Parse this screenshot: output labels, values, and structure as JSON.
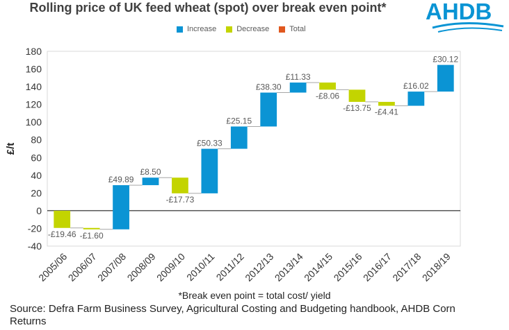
{
  "chart_data": {
    "type": "waterfall",
    "title": "Rolling price of UK feed wheat (spot) over break even point*",
    "ylabel": "£/t",
    "xlabel": "",
    "ylim": [
      -40,
      180
    ],
    "yticks": [
      -40,
      -20,
      0,
      20,
      40,
      60,
      80,
      100,
      120,
      140,
      160,
      180
    ],
    "categories": [
      "2005/06",
      "2006/07",
      "2007/08",
      "2008/09",
      "2009/10",
      "2010/11",
      "2011/12",
      "2012/13",
      "2013/14",
      "2014/15",
      "2015/16",
      "2016/17",
      "2017/18",
      "2018/19"
    ],
    "values": [
      -19.46,
      -1.6,
      49.89,
      8.5,
      -17.73,
      50.33,
      25.15,
      38.3,
      11.33,
      -8.06,
      -13.75,
      -4.41,
      16.02,
      30.12
    ],
    "labels": [
      "-£19.46",
      "-£1.60",
      "£49.89",
      "£8.50",
      "-£17.73",
      "£50.33",
      "£25.15",
      "£38.30",
      "£11.33",
      "-£8.06",
      "-£13.75",
      "-£4.41",
      "£16.02",
      "£30.12"
    ],
    "legend": [
      {
        "name": "Increase",
        "color": "#0b94d4"
      },
      {
        "name": "Decrease",
        "color": "#c3d400"
      },
      {
        "name": "Total",
        "color": "#e0581f"
      }
    ]
  },
  "logo": {
    "text": "AHDB"
  },
  "footnote": "*Break even point = total cost/ yield",
  "source": "Source: Defra Farm Business Survey, Agricultural Costing and Budgeting handbook, AHDB Corn Returns"
}
